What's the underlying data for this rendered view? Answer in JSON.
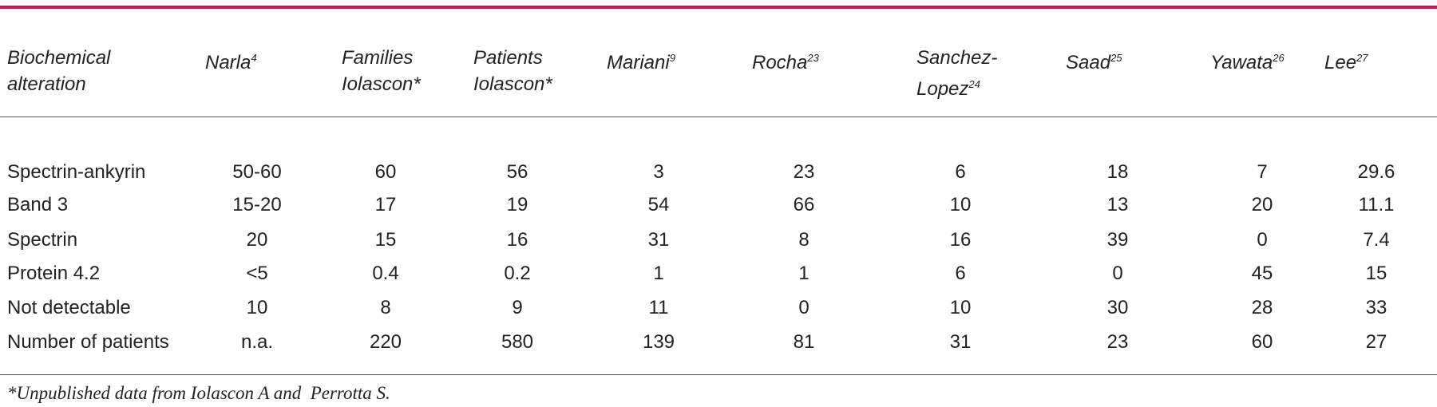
{
  "table": {
    "header": [
      {
        "text": "Biochemical alteration"
      },
      {
        "text": "Narla",
        "sup": "4"
      },
      {
        "text": "Families Iolascon*"
      },
      {
        "text": "Patients Iolascon*"
      },
      {
        "text": "Mariani",
        "sup": "9"
      },
      {
        "text": "Rocha",
        "sup": "23"
      },
      {
        "text": "Sanchez-Lopez",
        "sup": "24"
      },
      {
        "text": "Saad",
        "sup": "25"
      },
      {
        "text": "Yawata",
        "sup": "26"
      },
      {
        "text": "Lee",
        "sup": "27"
      }
    ],
    "rows": [
      [
        "Spectrin-ankyrin",
        "50-60",
        "60",
        "56",
        "3",
        "23",
        "6",
        "18",
        "7",
        "29.6"
      ],
      [
        "Band 3",
        "15-20",
        "17",
        "19",
        "54",
        "66",
        "10",
        "13",
        "20",
        "11.1"
      ],
      [
        "Spectrin",
        "20",
        "15",
        "16",
        "31",
        "8",
        "16",
        "39",
        "0",
        "7.4"
      ],
      [
        "Protein 4.2",
        "<5",
        "0.4",
        "0.2",
        "1",
        "1",
        "6",
        "0",
        "45",
        "15"
      ],
      [
        "Not detectable",
        "10",
        "8",
        "9",
        "11",
        "0",
        "10",
        "30",
        "28",
        "33"
      ],
      [
        "Number of patients",
        "n.a.",
        "220",
        "580",
        "139",
        "81",
        "31",
        "23",
        "60",
        "27"
      ]
    ],
    "footnote": "*Unpublished data from Iolascon A and  Perrotta S."
  }
}
